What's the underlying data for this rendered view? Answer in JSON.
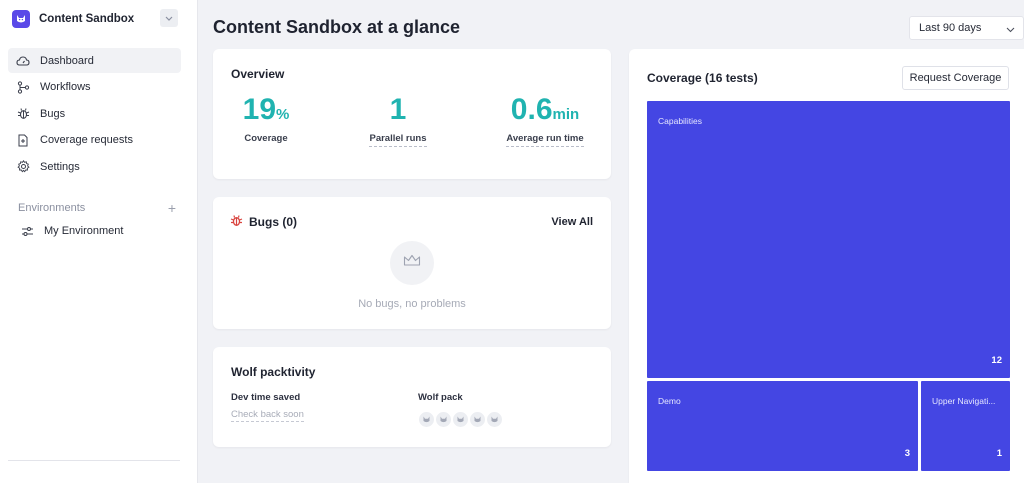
{
  "sidebar": {
    "workspace_name": "Content Sandbox",
    "nav": [
      {
        "label": "Dashboard",
        "icon": "cloud-icon",
        "active": true
      },
      {
        "label": "Workflows",
        "icon": "workflow-icon",
        "active": false
      },
      {
        "label": "Bugs",
        "icon": "bug-icon",
        "active": false
      },
      {
        "label": "Coverage requests",
        "icon": "document-plus-icon",
        "active": false
      },
      {
        "label": "Settings",
        "icon": "gear-icon",
        "active": false
      }
    ],
    "environments_label": "Environments",
    "environments": [
      {
        "label": "My Environment",
        "icon": "sliders-icon"
      }
    ]
  },
  "header": {
    "title": "Content Sandbox at a glance",
    "date_range": "Last 90 days"
  },
  "overview": {
    "title": "Overview",
    "stats": [
      {
        "value": "19",
        "unit": "%",
        "label": "Coverage"
      },
      {
        "value": "1",
        "unit": "",
        "label": "Parallel runs"
      },
      {
        "value": "0.6",
        "unit": "min",
        "label": "Average run time"
      }
    ]
  },
  "bugs": {
    "title": "Bugs (0)",
    "view_all": "View All",
    "empty_text": "No bugs, no problems"
  },
  "wolf": {
    "title": "Wolf packtivity",
    "dev_time_label": "Dev time saved",
    "dev_time_value": "Check back soon",
    "pack_label": "Wolf pack",
    "pack_count": 5
  },
  "coverage": {
    "title": "Coverage (16 tests)",
    "request_button": "Request Coverage",
    "tiles": [
      {
        "name": "Capabilities",
        "count": "12"
      },
      {
        "name": "Demo",
        "count": "3"
      },
      {
        "name": "Upper Navigati...",
        "count": "1"
      }
    ]
  },
  "colors": {
    "brand": "#5a49e8",
    "accent_teal": "#20b3b0",
    "treemap_tile": "#4446e3",
    "bug_red": "#d9443f"
  }
}
